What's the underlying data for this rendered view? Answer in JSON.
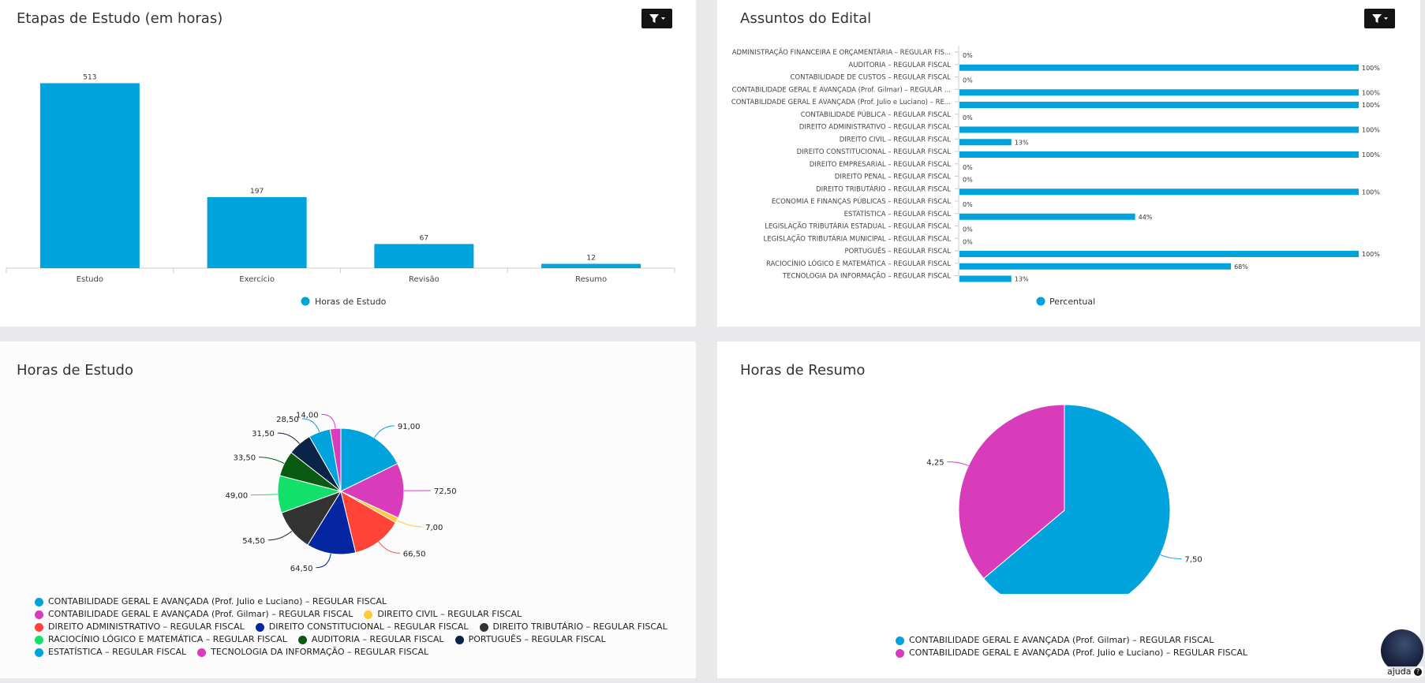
{
  "colors": {
    "blue": "#00a3dc",
    "magenta": "#d93cba",
    "yellow": "#ffca3a",
    "red": "#ff4336",
    "navy": "#0426a0",
    "dark_gray": "#333333",
    "green": "#13e06a",
    "dark_green": "#0b5a12",
    "dark_navy": "#0b2346"
  },
  "icons": {
    "filter": "filter-icon",
    "help": "help-circle-icon"
  },
  "panels": {
    "stages": {
      "title": "Etapas de Estudo (em horas)"
    },
    "subjects": {
      "title": "Assuntos do Edital"
    },
    "study_hours": {
      "title": "Horas de Estudo"
    },
    "summary_hours": {
      "title": "Horas de Resumo"
    }
  },
  "help": {
    "label": "ajuda"
  },
  "chart_data": [
    {
      "type": "bar",
      "categories": [
        "Estudo",
        "Exercício",
        "Revisão",
        "Resumo"
      ],
      "values": [
        513,
        197,
        67,
        12
      ],
      "data_labels": [
        "513",
        "197",
        "67",
        "12"
      ],
      "series_name": "Horas de Estudo",
      "ylim": [
        0,
        560
      ],
      "grid": false,
      "legend": "bottom"
    },
    {
      "type": "bar",
      "orientation": "horizontal",
      "categories": [
        "ADMINISTRAÇÃO FINANCEIRA E ORÇAMENTÁRIA – REGULAR FIS...",
        "AUDITORIA – REGULAR FISCAL",
        "CONTABILIDADE DE CUSTOS – REGULAR FISCAL",
        "CONTABILIDADE GERAL E AVANÇADA (Prof. Gilmar) – REGULAR ...",
        "CONTABILIDADE GERAL E AVANÇADA (Prof. Julio e Luciano) – RE...",
        "CONTABILIDADE PÚBLICA – REGULAR FISCAL",
        "DIREITO ADMINISTRATIVO – REGULAR FISCAL",
        "DIREITO CIVIL – REGULAR FISCAL",
        "DIREITO CONSTITUCIONAL – REGULAR FISCAL",
        "DIREITO EMPRESARIAL – REGULAR FISCAL",
        "DIREITO PENAL – REGULAR FISCAL",
        "DIREITO TRIBUTÁRIO – REGULAR FISCAL",
        "ECONOMIA E FINANÇAS PÚBLICAS – REGULAR FISCAL",
        "ESTATÍSTICA – REGULAR FISCAL",
        "LEGISLAÇÃO TRIBUTÁRIA ESTADUAL – REGULAR FISCAL",
        "LEGISLAÇÃO TRIBUTÁRIA MUNICIPAL – REGULAR FISCAL",
        "PORTUGUÊS – REGULAR FISCAL",
        "RACIOCÍNIO LÓGICO E MATEMÁTICA – REGULAR FISCAL",
        "TECNOLOGIA DA INFORMAÇÃO – REGULAR FISCAL"
      ],
      "values": [
        0,
        100,
        0,
        100,
        100,
        0,
        100,
        13,
        100,
        0,
        0,
        100,
        0,
        44,
        0,
        0,
        100,
        68,
        13
      ],
      "data_labels": [
        "0%",
        "100%",
        "0%",
        "100%",
        "100%",
        "0%",
        "100%",
        "13%",
        "100%",
        "0%",
        "0%",
        "100%",
        "0%",
        "44%",
        "0%",
        "0%",
        "100%",
        "68%",
        "13%"
      ],
      "series_name": "Percentual",
      "xlim": [
        0,
        100
      ],
      "grid": false,
      "legend": "bottom"
    },
    {
      "type": "pie",
      "slices": [
        {
          "label": "CONTABILIDADE GERAL E AVANÇADA (Prof. Julio e Luciano) – REGULAR FISCAL",
          "value": 91.0,
          "data_label": "91,00",
          "color": "#00a3dc"
        },
        {
          "label": "CONTABILIDADE GERAL E AVANÇADA (Prof. Gilmar) – REGULAR FISCAL",
          "value": 72.5,
          "data_label": "72,50",
          "color": "#d93cba"
        },
        {
          "label": "DIREITO CIVIL – REGULAR FISCAL",
          "value": 7.0,
          "data_label": "7,00",
          "color": "#ffca3a"
        },
        {
          "label": "DIREITO ADMINISTRATIVO – REGULAR FISCAL",
          "value": 66.5,
          "data_label": "66,50",
          "color": "#ff4336"
        },
        {
          "label": "DIREITO CONSTITUCIONAL – REGULAR FISCAL",
          "value": 64.5,
          "data_label": "64,50",
          "color": "#0426a0"
        },
        {
          "label": "DIREITO TRIBUTÁRIO – REGULAR FISCAL",
          "value": 54.5,
          "data_label": "54,50",
          "color": "#333333"
        },
        {
          "label": "RACIOCÍNIO LÓGICO E MATEMÁTICA – REGULAR FISCAL",
          "value": 49.0,
          "data_label": "49,00",
          "color": "#13e06a"
        },
        {
          "label": "AUDITORIA – REGULAR FISCAL",
          "value": 33.5,
          "data_label": "33,50",
          "color": "#0b5a12"
        },
        {
          "label": "PORTUGUÊS – REGULAR FISCAL",
          "value": 31.5,
          "data_label": "31,50",
          "color": "#0b2346"
        },
        {
          "label": "ESTATÍSTICA – REGULAR FISCAL",
          "value": 28.5,
          "data_label": "28,50",
          "color": "#00a3dc"
        },
        {
          "label": "TECNOLOGIA DA INFORMAÇÃO – REGULAR FISCAL",
          "value": 14.0,
          "data_label": "14,00",
          "color": "#d93cba"
        }
      ],
      "legend": "bottom"
    },
    {
      "type": "pie",
      "slices": [
        {
          "label": "CONTABILIDADE GERAL E AVANÇADA (Prof. Gilmar) – REGULAR FISCAL",
          "value": 7.5,
          "data_label": "7,50",
          "color": "#00a3dc"
        },
        {
          "label": "CONTABILIDADE GERAL E AVANÇADA (Prof. Julio e Luciano) – REGULAR FISCAL",
          "value": 4.25,
          "data_label": "4,25",
          "color": "#d93cba"
        }
      ],
      "legend": "bottom"
    }
  ]
}
